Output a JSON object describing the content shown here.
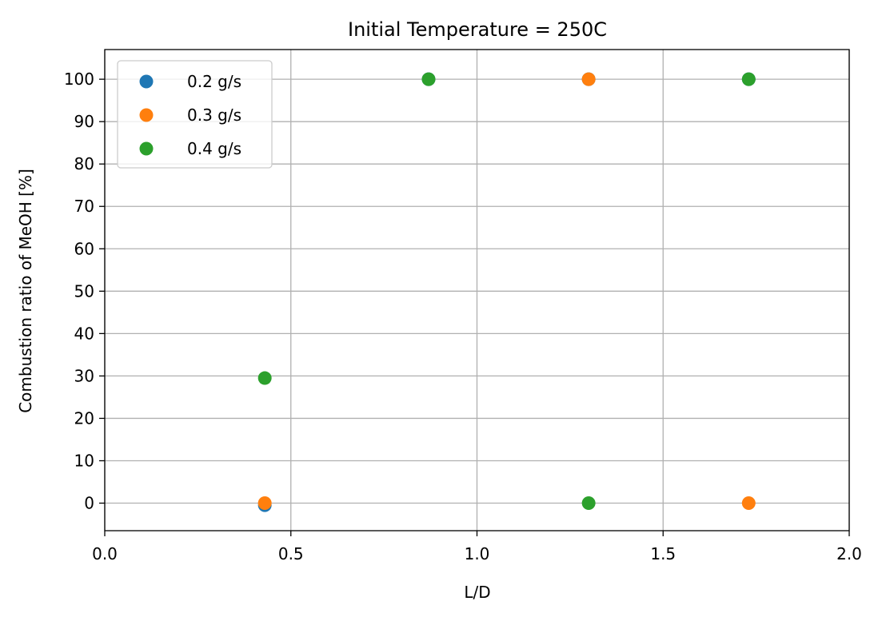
{
  "chart_data": {
    "type": "scatter",
    "title": "Initial Temperature = 250C",
    "xlabel": "L/D",
    "ylabel": "Combustion ratio of MeOH [%]",
    "xlim": [
      0.0,
      2.0
    ],
    "ylim": [
      -6.5,
      107
    ],
    "x_ticks": [
      0.0,
      0.5,
      1.0,
      1.5,
      2.0
    ],
    "x_tick_labels": [
      "0.0",
      "0.5",
      "1.0",
      "1.5",
      "2.0"
    ],
    "y_ticks": [
      0,
      10,
      20,
      30,
      40,
      50,
      60,
      70,
      80,
      90,
      100
    ],
    "y_tick_labels": [
      "0",
      "10",
      "20",
      "30",
      "40",
      "50",
      "60",
      "70",
      "80",
      "90",
      "100"
    ],
    "grid": true,
    "legend_position": "top-left",
    "series": [
      {
        "name": "0.2 g/s",
        "color": "#1f77b4",
        "points": [
          {
            "x": 0.43,
            "y": -0.5
          },
          {
            "x": 1.3,
            "y": 100
          },
          {
            "x": 0.87,
            "y": 100
          },
          {
            "x": 1.73,
            "y": 100
          }
        ]
      },
      {
        "name": "0.3 g/s",
        "color": "#ff7f0e",
        "points": [
          {
            "x": 0.43,
            "y": 0
          },
          {
            "x": 1.3,
            "y": 100
          },
          {
            "x": 1.73,
            "y": 0
          }
        ]
      },
      {
        "name": "0.4 g/s",
        "color": "#2ca02c",
        "points": [
          {
            "x": 0.43,
            "y": 29.5
          },
          {
            "x": 0.87,
            "y": 100
          },
          {
            "x": 1.3,
            "y": 0
          },
          {
            "x": 1.73,
            "y": 100
          }
        ]
      }
    ]
  }
}
